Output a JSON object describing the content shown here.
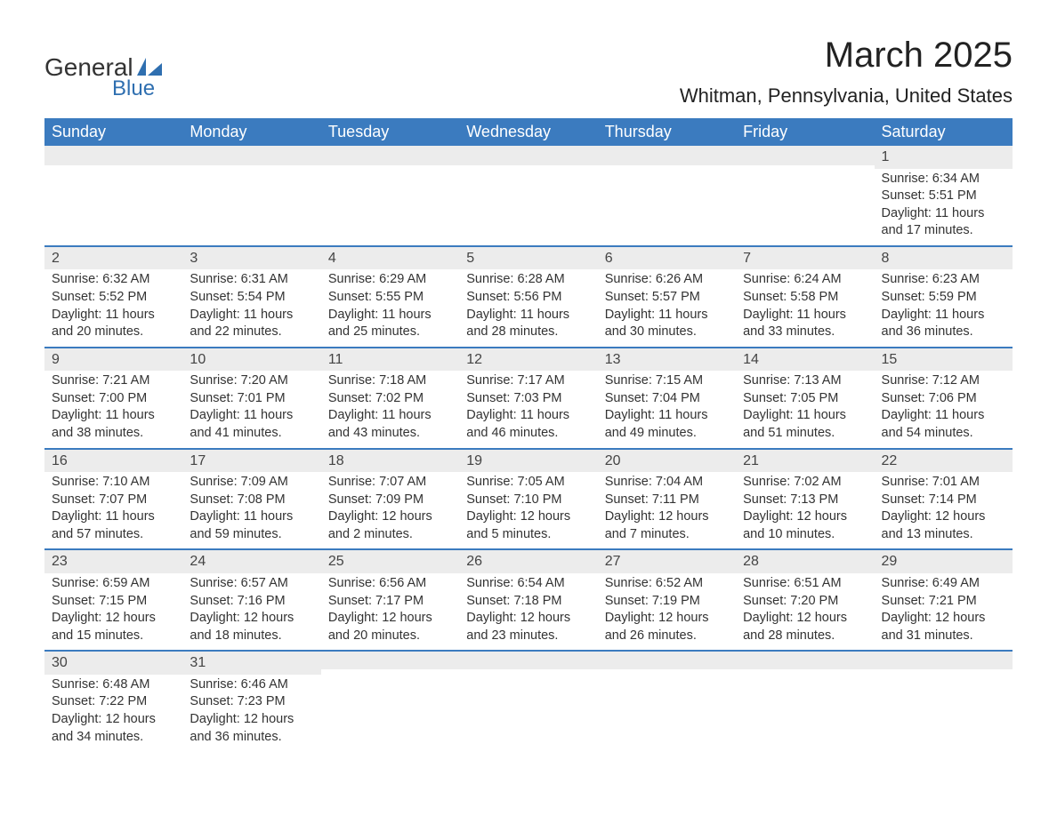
{
  "brand": {
    "word1": "General",
    "word2": "Blue",
    "accent_color": "#2f6fb0"
  },
  "title": "March 2025",
  "location": "Whitman, Pennsylvania, United States",
  "colors": {
    "header_bg": "#3b7bbf",
    "header_text": "#ffffff",
    "daynum_bg": "#ececec",
    "border": "#3b7bbf",
    "body_text": "#333333",
    "page_bg": "#ffffff"
  },
  "layout": {
    "columns": 7,
    "rows": 6
  },
  "weekdays": [
    "Sunday",
    "Monday",
    "Tuesday",
    "Wednesday",
    "Thursday",
    "Friday",
    "Saturday"
  ],
  "weeks": [
    [
      {
        "n": "",
        "sr": "",
        "ss": "",
        "dl": ""
      },
      {
        "n": "",
        "sr": "",
        "ss": "",
        "dl": ""
      },
      {
        "n": "",
        "sr": "",
        "ss": "",
        "dl": ""
      },
      {
        "n": "",
        "sr": "",
        "ss": "",
        "dl": ""
      },
      {
        "n": "",
        "sr": "",
        "ss": "",
        "dl": ""
      },
      {
        "n": "",
        "sr": "",
        "ss": "",
        "dl": ""
      },
      {
        "n": "1",
        "sr": "Sunrise: 6:34 AM",
        "ss": "Sunset: 5:51 PM",
        "dl": "Daylight: 11 hours and 17 minutes."
      }
    ],
    [
      {
        "n": "2",
        "sr": "Sunrise: 6:32 AM",
        "ss": "Sunset: 5:52 PM",
        "dl": "Daylight: 11 hours and 20 minutes."
      },
      {
        "n": "3",
        "sr": "Sunrise: 6:31 AM",
        "ss": "Sunset: 5:54 PM",
        "dl": "Daylight: 11 hours and 22 minutes."
      },
      {
        "n": "4",
        "sr": "Sunrise: 6:29 AM",
        "ss": "Sunset: 5:55 PM",
        "dl": "Daylight: 11 hours and 25 minutes."
      },
      {
        "n": "5",
        "sr": "Sunrise: 6:28 AM",
        "ss": "Sunset: 5:56 PM",
        "dl": "Daylight: 11 hours and 28 minutes."
      },
      {
        "n": "6",
        "sr": "Sunrise: 6:26 AM",
        "ss": "Sunset: 5:57 PM",
        "dl": "Daylight: 11 hours and 30 minutes."
      },
      {
        "n": "7",
        "sr": "Sunrise: 6:24 AM",
        "ss": "Sunset: 5:58 PM",
        "dl": "Daylight: 11 hours and 33 minutes."
      },
      {
        "n": "8",
        "sr": "Sunrise: 6:23 AM",
        "ss": "Sunset: 5:59 PM",
        "dl": "Daylight: 11 hours and 36 minutes."
      }
    ],
    [
      {
        "n": "9",
        "sr": "Sunrise: 7:21 AM",
        "ss": "Sunset: 7:00 PM",
        "dl": "Daylight: 11 hours and 38 minutes."
      },
      {
        "n": "10",
        "sr": "Sunrise: 7:20 AM",
        "ss": "Sunset: 7:01 PM",
        "dl": "Daylight: 11 hours and 41 minutes."
      },
      {
        "n": "11",
        "sr": "Sunrise: 7:18 AM",
        "ss": "Sunset: 7:02 PM",
        "dl": "Daylight: 11 hours and 43 minutes."
      },
      {
        "n": "12",
        "sr": "Sunrise: 7:17 AM",
        "ss": "Sunset: 7:03 PM",
        "dl": "Daylight: 11 hours and 46 minutes."
      },
      {
        "n": "13",
        "sr": "Sunrise: 7:15 AM",
        "ss": "Sunset: 7:04 PM",
        "dl": "Daylight: 11 hours and 49 minutes."
      },
      {
        "n": "14",
        "sr": "Sunrise: 7:13 AM",
        "ss": "Sunset: 7:05 PM",
        "dl": "Daylight: 11 hours and 51 minutes."
      },
      {
        "n": "15",
        "sr": "Sunrise: 7:12 AM",
        "ss": "Sunset: 7:06 PM",
        "dl": "Daylight: 11 hours and 54 minutes."
      }
    ],
    [
      {
        "n": "16",
        "sr": "Sunrise: 7:10 AM",
        "ss": "Sunset: 7:07 PM",
        "dl": "Daylight: 11 hours and 57 minutes."
      },
      {
        "n": "17",
        "sr": "Sunrise: 7:09 AM",
        "ss": "Sunset: 7:08 PM",
        "dl": "Daylight: 11 hours and 59 minutes."
      },
      {
        "n": "18",
        "sr": "Sunrise: 7:07 AM",
        "ss": "Sunset: 7:09 PM",
        "dl": "Daylight: 12 hours and 2 minutes."
      },
      {
        "n": "19",
        "sr": "Sunrise: 7:05 AM",
        "ss": "Sunset: 7:10 PM",
        "dl": "Daylight: 12 hours and 5 minutes."
      },
      {
        "n": "20",
        "sr": "Sunrise: 7:04 AM",
        "ss": "Sunset: 7:11 PM",
        "dl": "Daylight: 12 hours and 7 minutes."
      },
      {
        "n": "21",
        "sr": "Sunrise: 7:02 AM",
        "ss": "Sunset: 7:13 PM",
        "dl": "Daylight: 12 hours and 10 minutes."
      },
      {
        "n": "22",
        "sr": "Sunrise: 7:01 AM",
        "ss": "Sunset: 7:14 PM",
        "dl": "Daylight: 12 hours and 13 minutes."
      }
    ],
    [
      {
        "n": "23",
        "sr": "Sunrise: 6:59 AM",
        "ss": "Sunset: 7:15 PM",
        "dl": "Daylight: 12 hours and 15 minutes."
      },
      {
        "n": "24",
        "sr": "Sunrise: 6:57 AM",
        "ss": "Sunset: 7:16 PM",
        "dl": "Daylight: 12 hours and 18 minutes."
      },
      {
        "n": "25",
        "sr": "Sunrise: 6:56 AM",
        "ss": "Sunset: 7:17 PM",
        "dl": "Daylight: 12 hours and 20 minutes."
      },
      {
        "n": "26",
        "sr": "Sunrise: 6:54 AM",
        "ss": "Sunset: 7:18 PM",
        "dl": "Daylight: 12 hours and 23 minutes."
      },
      {
        "n": "27",
        "sr": "Sunrise: 6:52 AM",
        "ss": "Sunset: 7:19 PM",
        "dl": "Daylight: 12 hours and 26 minutes."
      },
      {
        "n": "28",
        "sr": "Sunrise: 6:51 AM",
        "ss": "Sunset: 7:20 PM",
        "dl": "Daylight: 12 hours and 28 minutes."
      },
      {
        "n": "29",
        "sr": "Sunrise: 6:49 AM",
        "ss": "Sunset: 7:21 PM",
        "dl": "Daylight: 12 hours and 31 minutes."
      }
    ],
    [
      {
        "n": "30",
        "sr": "Sunrise: 6:48 AM",
        "ss": "Sunset: 7:22 PM",
        "dl": "Daylight: 12 hours and 34 minutes."
      },
      {
        "n": "31",
        "sr": "Sunrise: 6:46 AM",
        "ss": "Sunset: 7:23 PM",
        "dl": "Daylight: 12 hours and 36 minutes."
      },
      {
        "n": "",
        "sr": "",
        "ss": "",
        "dl": ""
      },
      {
        "n": "",
        "sr": "",
        "ss": "",
        "dl": ""
      },
      {
        "n": "",
        "sr": "",
        "ss": "",
        "dl": ""
      },
      {
        "n": "",
        "sr": "",
        "ss": "",
        "dl": ""
      },
      {
        "n": "",
        "sr": "",
        "ss": "",
        "dl": ""
      }
    ]
  ]
}
